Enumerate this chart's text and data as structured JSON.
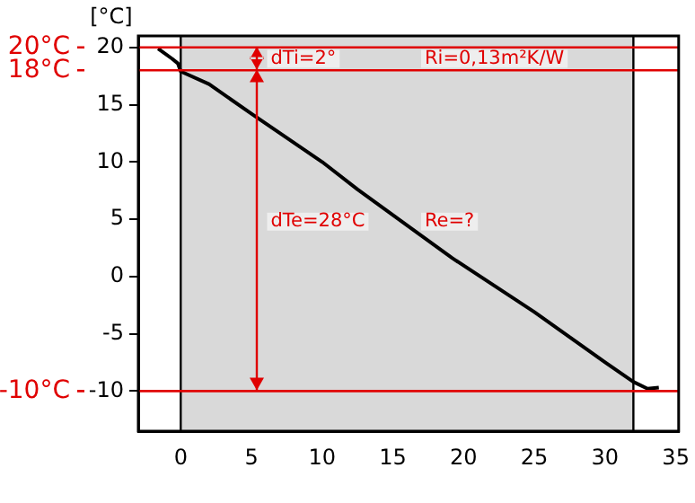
{
  "chart_data": {
    "type": "line",
    "ylabel": "[°C]",
    "series": [
      {
        "color": "#000000",
        "x": [
          -1.6,
          -0.6,
          -0.2,
          0,
          2,
          5,
          10,
          12.5,
          19.2,
          25,
          30,
          32,
          33,
          33.8
        ],
        "values": [
          19.9,
          19,
          18.6,
          17.9,
          16.8,
          14.2,
          10,
          7.6,
          1.6,
          -3.1,
          -7.5,
          -9.2,
          -9.8,
          -9.7
        ]
      }
    ],
    "xlim": [
      -3,
      35.2
    ],
    "xticks": [
      0,
      5,
      10,
      15,
      20,
      25,
      30,
      35
    ],
    "ylim": [
      -13.5,
      21
    ],
    "yticks": [
      -10,
      -5,
      0,
      5,
      10,
      15,
      20
    ],
    "bands": [
      {
        "axis": "x",
        "from": 0,
        "to": 32,
        "color": "#d9d9d9"
      }
    ],
    "ref_lines": [
      {
        "axis": "y",
        "value": 20,
        "label": "20°C",
        "color": "#e00000"
      },
      {
        "axis": "y",
        "value": 18,
        "label": "18°C",
        "color": "#e00000"
      },
      {
        "axis": "y",
        "value": -10,
        "label": "-10°C",
        "color": "#e00000"
      },
      {
        "axis": "x",
        "value": 0,
        "color": "#000000"
      },
      {
        "axis": "x",
        "value": 32,
        "color": "#000000"
      }
    ],
    "annotations": [
      "dTi=2°",
      "Ri=0,13m²K/W",
      "dTe=28°C",
      "Re=?"
    ],
    "grid": false,
    "legend": false,
    "marker": "none",
    "line_style": "solid"
  }
}
